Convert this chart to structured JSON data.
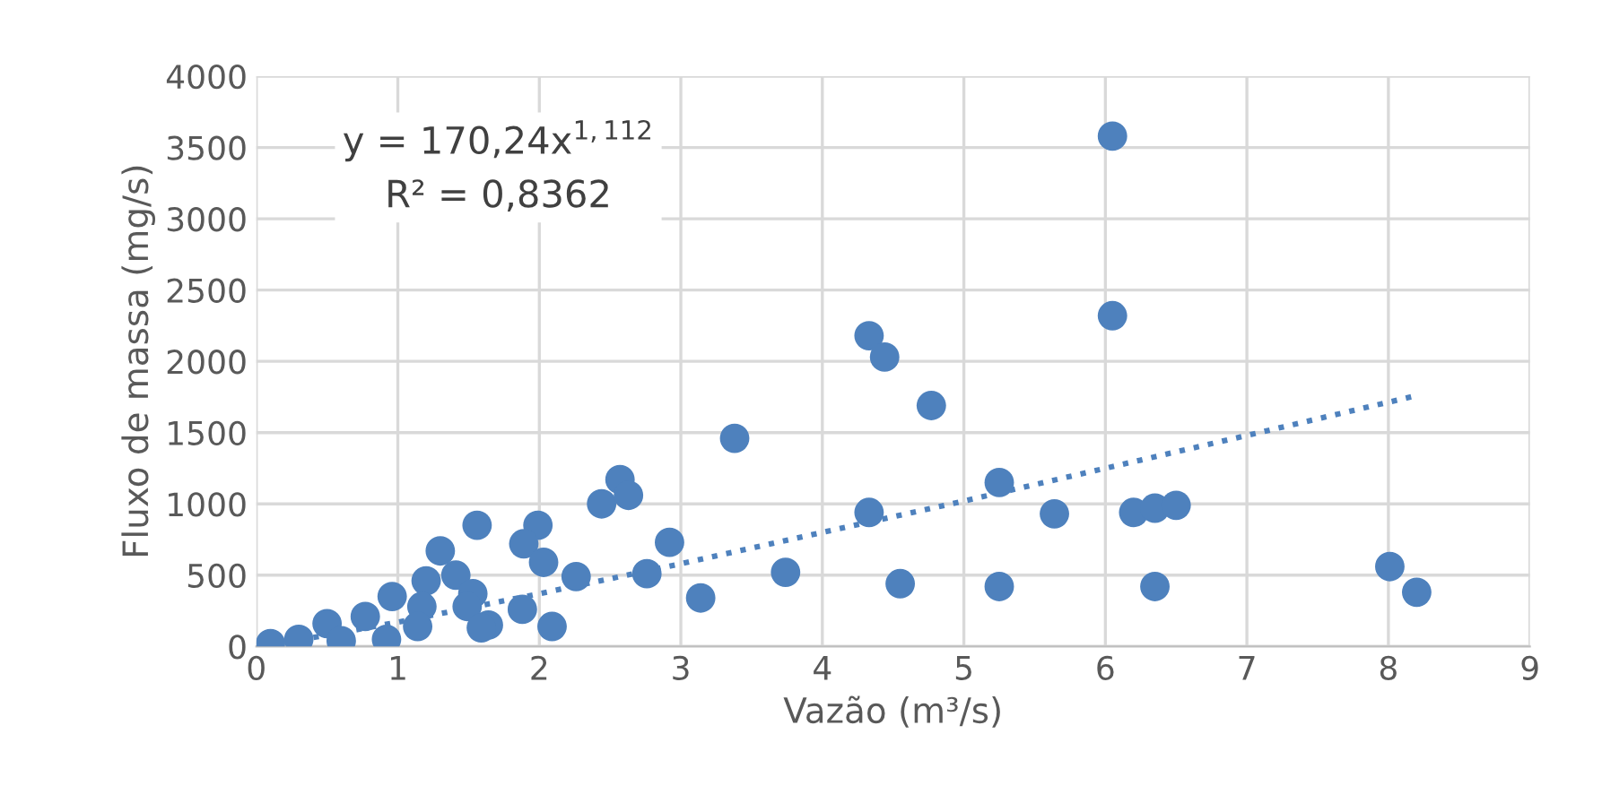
{
  "chart_data": {
    "type": "scatter",
    "xlabel": "Vazão (m³/s)",
    "ylabel": "Fluxo de massa (mg/s)",
    "xlim": [
      0,
      9
    ],
    "xticks": [
      0,
      1,
      2,
      3,
      4,
      5,
      6,
      7,
      8,
      9
    ],
    "ylim": [
      0,
      4000
    ],
    "yticks": [
      0,
      500,
      1000,
      1500,
      2000,
      2500,
      3000,
      3500,
      4000
    ],
    "grid": true,
    "legend": false,
    "marker": "circle",
    "annotations": [
      "y = 170,24x$^{1,112}$\nR² = 0,8362"
    ],
    "series": [
      {
        "color": "#4e81bd",
        "x": [
          6.05,
          6.05,
          4.33,
          4.44,
          4.77,
          3.38,
          5.25,
          4.33,
          5.64,
          6.2,
          6.35,
          6.5,
          2.92,
          3.14,
          3.74,
          4.55,
          5.25,
          6.35,
          8.01,
          8.2,
          1.56,
          1.99,
          1.89,
          2.44,
          2.57,
          2.63,
          2.03,
          1.3,
          1.2,
          1.41,
          0.96,
          1.53,
          1.49,
          1.17,
          1.88,
          2.26,
          2.76,
          1.64,
          1.14,
          2.09,
          1.59,
          0.92,
          0.77,
          0.1,
          0.3,
          0.5,
          0.6
        ],
        "values": [
          3580,
          2320,
          2180,
          2030,
          1690,
          1460,
          1150,
          940,
          930,
          940,
          970,
          990,
          730,
          340,
          520,
          440,
          420,
          420,
          560,
          380,
          850,
          850,
          720,
          1000,
          1170,
          1060,
          590,
          670,
          460,
          500,
          350,
          370,
          280,
          280,
          260,
          490,
          510,
          150,
          140,
          140,
          130,
          50,
          210,
          20,
          50,
          160,
          40
        ]
      },
      {
        "type": "line",
        "color": "#4e81bd",
        "line_style": "dotted",
        "marker": "none",
        "x": [
          0.1,
          0.5,
          1,
          2,
          3,
          4,
          5,
          6,
          7,
          8.2
        ],
        "values": [
          10,
          80,
          170,
          370,
          580,
          800,
          1020,
          1250,
          1480,
          1760
        ]
      }
    ]
  }
}
